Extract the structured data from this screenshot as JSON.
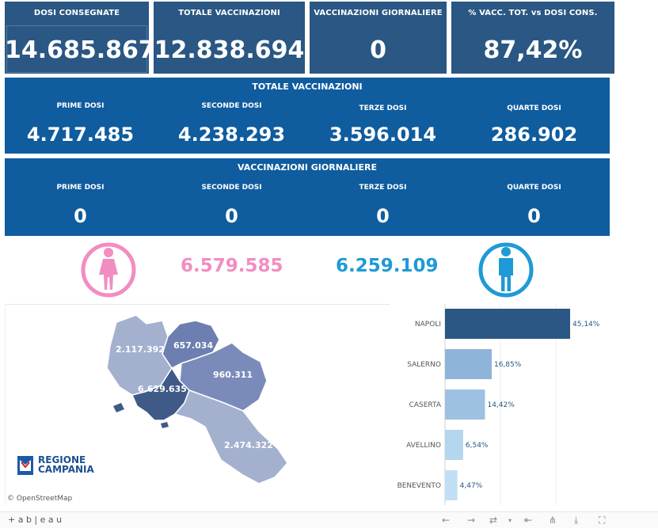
{
  "kpis": [
    {
      "label": "DOSI  CONSEGNATE",
      "value": "14.685.867"
    },
    {
      "label": "TOTALE VACCINAZIONI",
      "value": "12.838.694"
    },
    {
      "label": "VACCINAZIONI GIORNALIERE",
      "value": "0"
    },
    {
      "label": "% VACC. TOT. vs DOSI CONS.",
      "value": "87,42%"
    }
  ],
  "totale": {
    "title": "TOTALE VACCINAZIONI",
    "items": [
      {
        "label": "PRIME DOSI",
        "value": "4.717.485"
      },
      {
        "label": "SECONDE DOSI",
        "value": "4.238.293"
      },
      {
        "label": "TERZE DOSI",
        "value": "3.596.014"
      },
      {
        "label": "QUARTE DOSI",
        "value": "286.902"
      }
    ]
  },
  "giornaliere": {
    "title": "VACCINAZIONI GIORNALIERE",
    "items": [
      {
        "label": "PRIME DOSI",
        "value": "0"
      },
      {
        "label": "SECONDE DOSI",
        "value": "0"
      },
      {
        "label": "TERZE DOSI",
        "value": "0"
      },
      {
        "label": "QUARTE DOSI",
        "value": "0"
      }
    ]
  },
  "gender": {
    "female_value": "6.579.585",
    "male_value": "6.259.109",
    "female_color": "#f28dc2",
    "male_color": "#1f9ad6",
    "female_icon": "female-icon",
    "male_icon": "male-icon"
  },
  "map": {
    "region_values": [
      "2.117.392",
      "657.034",
      "960.311",
      "6.629.635",
      "2.474.322"
    ],
    "logo_line1": "REGIONE",
    "logo_line2": "CAMPANIA",
    "attribution": "© OpenStreetMap"
  },
  "chart_data": {
    "type": "bar",
    "orientation": "horizontal",
    "categories": [
      "NAPOLI",
      "SALERNO",
      "CASERTA",
      "AVELLINO",
      "BENEVENTO"
    ],
    "values": [
      45.14,
      16.85,
      14.42,
      6.54,
      4.47
    ],
    "labels": [
      "45,14%",
      "16,85%",
      "14,42%",
      "6,54%",
      "4,47%"
    ],
    "colors": [
      "#2a5783",
      "#8fb4da",
      "#9ec1e2",
      "#b4d6ee",
      "#c1dff4"
    ]
  },
  "footer": {
    "brand": "+ a b | e a u"
  }
}
